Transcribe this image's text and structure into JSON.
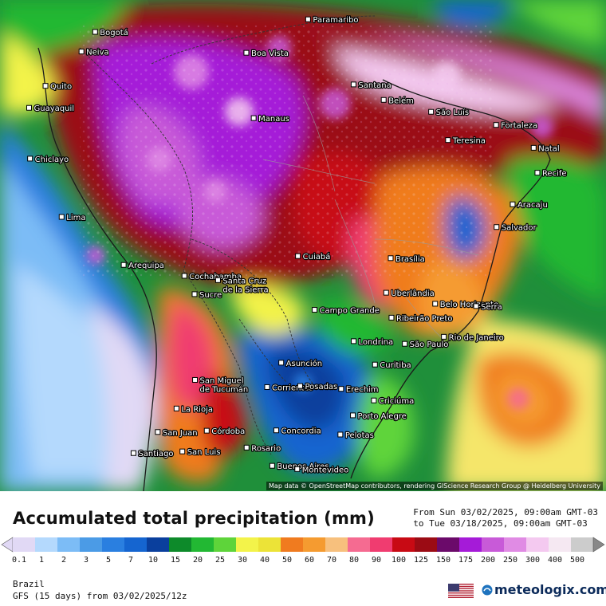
{
  "map": {
    "region": "South America",
    "attribution": "Map data © OpenStreetMap contributors, rendering GIScience Research Group @ Heidelberg University",
    "cities": [
      {
        "name": "Paramaribo",
        "lat": 5.85,
        "lon": -55.2
      },
      {
        "name": "Bogotá",
        "lat": 4.71,
        "lon": -74.07
      },
      {
        "name": "Neiva",
        "lat": 2.93,
        "lon": -75.28
      },
      {
        "name": "Boa Vista",
        "lat": 2.82,
        "lon": -60.67
      },
      {
        "name": "Quito",
        "lat": -0.18,
        "lon": -78.47
      },
      {
        "name": "Santana",
        "lat": -0.05,
        "lon": -51.17
      },
      {
        "name": "Belém",
        "lat": -1.45,
        "lon": -48.5
      },
      {
        "name": "Guayaquil",
        "lat": -2.17,
        "lon": -79.92
      },
      {
        "name": "São Luís",
        "lat": -2.53,
        "lon": -44.3
      },
      {
        "name": "Manaus",
        "lat": -3.1,
        "lon": -60.02
      },
      {
        "name": "Fortaleza",
        "lat": -3.72,
        "lon": -38.54
      },
      {
        "name": "Teresina",
        "lat": -5.09,
        "lon": -42.8
      },
      {
        "name": "Natal",
        "lat": -5.79,
        "lon": -35.21
      },
      {
        "name": "Chiclayo",
        "lat": -6.77,
        "lon": -79.84
      },
      {
        "name": "Recife",
        "lat": -8.05,
        "lon": -34.88
      },
      {
        "name": "Aracaju",
        "lat": -10.91,
        "lon": -37.07
      },
      {
        "name": "Lima",
        "lat": -12.05,
        "lon": -77.04
      },
      {
        "name": "Salvador",
        "lat": -12.97,
        "lon": -38.5
      },
      {
        "name": "Cuiabá",
        "lat": -15.6,
        "lon": -56.1
      },
      {
        "name": "Brasília",
        "lat": -15.79,
        "lon": -47.88
      },
      {
        "name": "Arequipa",
        "lat": -16.4,
        "lon": -71.54
      },
      {
        "name": "Cochabamba",
        "lat": -17.39,
        "lon": -66.16
      },
      {
        "name": "Santa Cruz de la Sierra",
        "lat": -17.78,
        "lon": -63.18
      },
      {
        "name": "Sucre",
        "lat": -19.05,
        "lon": -65.26
      },
      {
        "name": "Uberlândia",
        "lat": -18.92,
        "lon": -48.28
      },
      {
        "name": "Belo Horizonte",
        "lat": -19.92,
        "lon": -43.94
      },
      {
        "name": "Campo Grande",
        "lat": -20.47,
        "lon": -54.62
      },
      {
        "name": "Ribeirão Preto",
        "lat": -21.18,
        "lon": -47.81
      },
      {
        "name": "Serra",
        "lat": -20.13,
        "lon": -40.31
      },
      {
        "name": "Rio de Janeiro",
        "lat": -22.91,
        "lon": -43.17
      },
      {
        "name": "Londrina",
        "lat": -23.31,
        "lon": -51.16
      },
      {
        "name": "São Paulo",
        "lat": -23.55,
        "lon": -46.63
      },
      {
        "name": "Curitiba",
        "lat": -25.43,
        "lon": -49.27
      },
      {
        "name": "Asunción",
        "lat": -25.26,
        "lon": -57.58
      },
      {
        "name": "San Miguel de Tucumán",
        "lat": -26.82,
        "lon": -65.22
      },
      {
        "name": "Corrientes",
        "lat": -27.47,
        "lon": -58.83
      },
      {
        "name": "Posadas",
        "lat": -27.37,
        "lon": -55.9
      },
      {
        "name": "Erechim",
        "lat": -27.63,
        "lon": -52.27
      },
      {
        "name": "Criciúma",
        "lat": -28.68,
        "lon": -49.37
      },
      {
        "name": "La Rioja",
        "lat": -29.41,
        "lon": -66.86
      },
      {
        "name": "Porto Alegre",
        "lat": -30.03,
        "lon": -51.23
      },
      {
        "name": "San Juan",
        "lat": -31.54,
        "lon": -68.52
      },
      {
        "name": "Córdoba",
        "lat": -31.42,
        "lon": -64.18
      },
      {
        "name": "Concordia",
        "lat": -31.39,
        "lon": -58.02
      },
      {
        "name": "Pelotas",
        "lat": -31.77,
        "lon": -52.34
      },
      {
        "name": "Rosario",
        "lat": -32.95,
        "lon": -60.65
      },
      {
        "name": "San Luis",
        "lat": -33.3,
        "lon": -66.34
      },
      {
        "name": "Santiago",
        "lat": -33.45,
        "lon": -70.67
      },
      {
        "name": "Buenos Aires",
        "lat": -34.6,
        "lon": -58.38
      },
      {
        "name": "Montevideo",
        "lat": -34.9,
        "lon": -56.16
      }
    ]
  },
  "legend": {
    "title": "Accumulated total precipitation (mm)",
    "period_from": "From Sun 03/02/2025, 09:00am GMT-03",
    "period_to": "to Tue 03/18/2025, 09:00am GMT-03",
    "levels": [
      "0.1",
      "1",
      "2",
      "3",
      "5",
      "7",
      "10",
      "15",
      "20",
      "25",
      "30",
      "40",
      "50",
      "60",
      "70",
      "80",
      "90",
      "100",
      "125",
      "150",
      "175",
      "200",
      "250",
      "300",
      "400",
      "500"
    ],
    "colors": [
      "#e1d9f5",
      "#b4d9fd",
      "#7cbcf6",
      "#4b9be6",
      "#2a7fe0",
      "#1565d0",
      "#0a3f9d",
      "#0d8a2a",
      "#22b833",
      "#5ed43a",
      "#f3f34a",
      "#ece337",
      "#f07b1f",
      "#f59b30",
      "#f7c07d",
      "#f56b91",
      "#f03c70",
      "#c80a14",
      "#9b0b14",
      "#6b0a6a",
      "#a51bd8",
      "#c85ad8",
      "#e08be4",
      "#f4c9f0",
      "#f5e8f2",
      "#cccccc"
    ]
  },
  "footer": {
    "region": "Brazil",
    "model": "GFS (15 days) from 03/02/2025/12z",
    "brand": "meteologix.com"
  }
}
